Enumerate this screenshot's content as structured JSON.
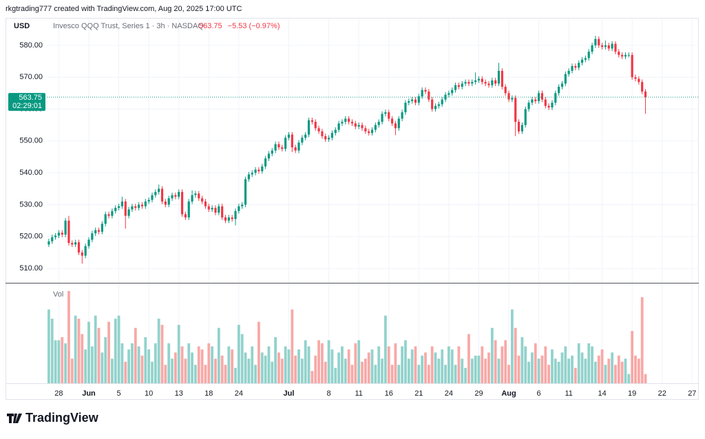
{
  "chart_data": {
    "type": "candlestick",
    "title": "rkgtrading777 created with TradingView.com, Aug 20, 2025 17:00 UTC",
    "currency": "USD",
    "symbol": "Invesco QQQ Trust, Series 1 · 3h · NASDAQ",
    "last_price": 563.75,
    "change_label": "−5.53 (−0.97%)",
    "countdown": "02:29:01",
    "volume_label": "Vol",
    "up_color": "#089981",
    "down_color": "#f23645",
    "volume_up_color": "#92d2cc",
    "volume_down_color": "#f7a9a7",
    "grid": true,
    "ylim": [
      505.7,
      588.4
    ],
    "yticks": [
      {
        "value": 510,
        "label": "510.00"
      },
      {
        "value": 520,
        "label": "520.00"
      },
      {
        "value": 530,
        "label": "530.00"
      },
      {
        "value": 540,
        "label": "540.00"
      },
      {
        "value": 550,
        "label": "550.00"
      },
      {
        "value": 560,
        "label": "560.00"
      },
      {
        "value": 570,
        "label": "570.00"
      },
      {
        "value": 580,
        "label": "580.00"
      }
    ],
    "xlim": [
      -0.6,
      195
    ],
    "xticks": [
      {
        "value": 3,
        "label": "28"
      },
      {
        "value": 12,
        "label": "Jun"
      },
      {
        "value": 21,
        "label": "5"
      },
      {
        "value": 30,
        "label": "10"
      },
      {
        "value": 39,
        "label": "13"
      },
      {
        "value": 48,
        "label": "18"
      },
      {
        "value": 57,
        "label": "24"
      },
      {
        "value": 72,
        "label": "Jul"
      },
      {
        "value": 84,
        "label": "8"
      },
      {
        "value": 93,
        "label": "11"
      },
      {
        "value": 102,
        "label": "16"
      },
      {
        "value": 111,
        "label": "21"
      },
      {
        "value": 120,
        "label": "24"
      },
      {
        "value": 129,
        "label": "29"
      },
      {
        "value": 138,
        "label": "Aug"
      },
      {
        "value": 147,
        "label": "6"
      },
      {
        "value": 156,
        "label": "11"
      },
      {
        "value": 166,
        "label": "14"
      },
      {
        "value": 175,
        "label": "19"
      },
      {
        "value": 184,
        "label": "22"
      },
      {
        "value": 193,
        "label": "27"
      }
    ],
    "vlim": [
      0,
      32
    ],
    "open": [
      517.5,
      518.5,
      519.8,
      520.3,
      521.2,
      520.6,
      525.0,
      518.0,
      517.5,
      518.2,
      515.0,
      514.0,
      517.0,
      519.0,
      521.0,
      522.0,
      521.5,
      524.0,
      527.0,
      526.5,
      528.0,
      529.0,
      529.5,
      531.0,
      526.5,
      528.5,
      529.5,
      529.0,
      530.0,
      529.5,
      531.0,
      531.5,
      533.0,
      534.0,
      535.0,
      531.0,
      530.0,
      532.0,
      533.0,
      532.5,
      534.0,
      527.0,
      526.0,
      531.0,
      533.0,
      533.5,
      532.0,
      531.0,
      529.5,
      528.5,
      529.0,
      527.5,
      529.5,
      526.0,
      525.0,
      526.0,
      525.5,
      528.0,
      529.5,
      530.0,
      538.0,
      539.5,
      540.0,
      541.0,
      540.5,
      542.0,
      544.5,
      546.0,
      547.0,
      549.0,
      548.0,
      547.5,
      551.0,
      552.0,
      548.0,
      547.0,
      549.5,
      551.0,
      552.0,
      556.5,
      556.0,
      554.0,
      553.0,
      551.5,
      550.5,
      551.0,
      552.5,
      553.5,
      555.5,
      556.0,
      557.0,
      556.0,
      555.5,
      554.5,
      555.0,
      554.0,
      553.0,
      552.5,
      553.5,
      555.0,
      556.0,
      558.5,
      559.0,
      557.0,
      555.5,
      554.0,
      557.0,
      559.0,
      562.0,
      562.5,
      563.0,
      562.0,
      564.0,
      566.0,
      565.5,
      563.0,
      560.0,
      561.0,
      561.5,
      563.0,
      564.5,
      565.0,
      566.0,
      567.5,
      567.0,
      568.0,
      568.5,
      568.0,
      568.5,
      569.0,
      569.5,
      568.5,
      568.0,
      567.5,
      569.0,
      568.0,
      572.0,
      567.0,
      565.0,
      563.0,
      563.5,
      556.0,
      553.0,
      555.0,
      560.0,
      562.0,
      563.0,
      562.5,
      565.0,
      563.0,
      561.0,
      560.5,
      562.0,
      565.0,
      567.0,
      568.0,
      571.0,
      572.0,
      573.5,
      573.0,
      574.5,
      575.5,
      576.0,
      578.0,
      580.0,
      582.0,
      580.0,
      579.5,
      580.0,
      579.0,
      580.5,
      578.0,
      577.0,
      576.5,
      577.0,
      577.0,
      570.0,
      569.5,
      568.5,
      565.5
    ],
    "high": [
      519.3,
      520.6,
      521.1,
      522.0,
      522.0,
      525.8,
      526.5,
      518.8,
      519.0,
      519.0,
      515.8,
      517.8,
      519.8,
      521.8,
      522.8,
      522.8,
      524.8,
      527.8,
      527.8,
      528.8,
      529.8,
      530.3,
      532.5,
      531.8,
      529.3,
      530.3,
      530.3,
      530.8,
      530.8,
      531.8,
      532.3,
      533.8,
      534.8,
      536.3,
      535.8,
      531.8,
      532.8,
      533.8,
      533.8,
      534.8,
      534.8,
      527.8,
      531.8,
      534.5,
      534.3,
      534.3,
      532.8,
      531.8,
      530.3,
      529.8,
      529.8,
      530.3,
      530.3,
      526.8,
      526.8,
      526.8,
      528.8,
      530.3,
      530.8,
      538.8,
      540.3,
      540.8,
      541.8,
      541.8,
      542.8,
      545.3,
      546.8,
      547.8,
      549.8,
      549.8,
      548.8,
      551.8,
      552.8,
      552.8,
      548.8,
      550.3,
      551.8,
      552.8,
      557.3,
      557.3,
      556.8,
      554.8,
      553.8,
      552.3,
      551.8,
      553.3,
      554.3,
      556.3,
      556.8,
      557.8,
      557.8,
      556.8,
      556.3,
      555.8,
      555.8,
      554.8,
      553.8,
      554.3,
      555.8,
      556.8,
      559.3,
      559.8,
      559.8,
      557.8,
      556.3,
      557.8,
      559.8,
      562.8,
      563.3,
      563.8,
      563.8,
      564.8,
      566.8,
      566.8,
      566.3,
      563.8,
      561.8,
      562.3,
      563.8,
      565.3,
      565.8,
      566.8,
      568.3,
      568.3,
      568.8,
      569.3,
      569.3,
      569.3,
      571.5,
      570.3,
      570.3,
      569.3,
      568.8,
      569.8,
      569.8,
      574.5,
      572.8,
      567.8,
      565.8,
      564.3,
      564.3,
      556.8,
      555.8,
      560.8,
      562.8,
      563.8,
      563.8,
      565.8,
      565.8,
      563.8,
      561.8,
      562.8,
      565.8,
      567.8,
      568.8,
      571.8,
      572.8,
      574.3,
      574.3,
      575.3,
      576.3,
      576.8,
      578.8,
      580.8,
      583.0,
      582.8,
      580.8,
      581.5,
      580.8,
      581.3,
      581.3,
      578.8,
      577.8,
      577.8,
      577.8,
      577.8,
      570.8,
      570.3,
      569.3,
      566.3
    ],
    "low": [
      516.7,
      517.7,
      519.0,
      519.5,
      519.8,
      519.8,
      517.2,
      516.7,
      516.7,
      514.2,
      511.5,
      513.2,
      516.2,
      518.2,
      520.2,
      520.7,
      520.7,
      523.2,
      525.7,
      525.7,
      527.2,
      528.2,
      528.7,
      522.5,
      525.7,
      527.7,
      528.2,
      528.2,
      528.7,
      528.7,
      530.2,
      530.7,
      532.2,
      533.2,
      530.2,
      529.2,
      529.2,
      531.2,
      531.7,
      531.7,
      526.2,
      525.2,
      525.2,
      530.2,
      532.2,
      531.2,
      530.2,
      528.7,
      527.7,
      527.7,
      526.7,
      526.7,
      525.2,
      524.2,
      524.2,
      524.7,
      523.5,
      527.2,
      528.7,
      529.2,
      537.2,
      538.7,
      539.2,
      539.7,
      539.7,
      541.2,
      543.7,
      545.2,
      546.2,
      547.2,
      546.7,
      546.7,
      550.2,
      546.5,
      546.2,
      546.2,
      548.7,
      550.2,
      551.2,
      555.2,
      553.2,
      552.2,
      550.7,
      549.7,
      549.7,
      550.2,
      551.7,
      552.7,
      554.7,
      555.2,
      555.2,
      554.7,
      553.7,
      553.7,
      553.2,
      552.2,
      551.7,
      551.7,
      552.7,
      554.2,
      555.2,
      557.7,
      556.2,
      554.7,
      551.8,
      553.2,
      556.2,
      558.2,
      561.2,
      561.7,
      561.2,
      561.2,
      563.2,
      564.7,
      562.2,
      559.2,
      559.2,
      560.2,
      560.7,
      562.2,
      563.7,
      564.2,
      565.2,
      566.2,
      566.2,
      567.2,
      567.2,
      567.2,
      567.7,
      568.2,
      567.7,
      567.2,
      566.7,
      566.7,
      567.2,
      567.2,
      566.2,
      564.2,
      562.2,
      562.2,
      551.5,
      552.2,
      552.2,
      554.2,
      559.2,
      561.2,
      561.7,
      561.7,
      562.2,
      560.2,
      559.7,
      559.7,
      561.2,
      564.2,
      566.2,
      567.2,
      570.2,
      571.2,
      572.2,
      572.2,
      573.7,
      574.7,
      575.2,
      577.2,
      579.2,
      579.2,
      578.7,
      578.7,
      578.2,
      578.2,
      577.2,
      576.2,
      575.7,
      575.7,
      576.2,
      569.2,
      568.7,
      567.7,
      564.7,
      558.5
    ],
    "close": [
      518.5,
      519.8,
      520.3,
      521.2,
      520.6,
      525.0,
      518.0,
      517.5,
      518.2,
      515.0,
      514.0,
      517.0,
      519.0,
      521.0,
      522.0,
      521.5,
      524.0,
      527.0,
      526.5,
      528.0,
      529.0,
      529.5,
      531.0,
      526.5,
      528.5,
      529.5,
      529.0,
      530.0,
      529.5,
      531.0,
      531.5,
      533.0,
      534.0,
      535.0,
      531.0,
      530.0,
      532.0,
      533.0,
      532.5,
      534.0,
      527.0,
      526.0,
      531.0,
      533.0,
      533.5,
      532.0,
      531.0,
      529.5,
      528.5,
      529.0,
      527.5,
      529.5,
      526.0,
      525.0,
      526.0,
      525.5,
      528.0,
      529.5,
      530.0,
      538.0,
      539.5,
      540.0,
      541.0,
      540.5,
      542.0,
      544.5,
      546.0,
      547.0,
      549.0,
      548.0,
      547.5,
      551.0,
      552.0,
      548.0,
      547.0,
      549.5,
      551.0,
      552.0,
      556.5,
      556.0,
      554.0,
      553.0,
      551.5,
      550.5,
      551.0,
      552.5,
      553.5,
      555.5,
      556.0,
      557.0,
      556.0,
      555.5,
      554.5,
      555.0,
      554.0,
      553.0,
      552.5,
      553.5,
      555.0,
      556.0,
      558.5,
      559.0,
      557.0,
      555.5,
      554.0,
      557.0,
      559.0,
      562.0,
      562.5,
      563.0,
      562.0,
      564.0,
      566.0,
      565.5,
      563.0,
      560.0,
      561.0,
      561.5,
      563.0,
      564.5,
      565.0,
      566.0,
      567.5,
      567.0,
      568.0,
      568.5,
      568.0,
      568.5,
      569.0,
      569.5,
      568.5,
      568.0,
      567.5,
      569.0,
      568.0,
      572.0,
      567.0,
      565.0,
      563.0,
      563.5,
      556.0,
      553.0,
      555.0,
      560.0,
      562.0,
      563.0,
      562.5,
      565.0,
      563.0,
      561.0,
      560.5,
      562.0,
      565.0,
      567.0,
      568.0,
      571.0,
      572.0,
      573.5,
      573.0,
      574.5,
      575.5,
      576.0,
      578.0,
      580.0,
      582.0,
      580.0,
      579.5,
      580.0,
      579.0,
      580.5,
      578.0,
      577.0,
      576.5,
      577.0,
      577.0,
      570.0,
      569.5,
      568.5,
      565.5,
      563.75
    ],
    "volume": [
      24,
      21,
      14,
      14,
      15,
      13,
      30,
      8,
      22,
      21,
      16,
      11,
      20,
      12,
      22,
      18,
      10,
      15,
      20,
      8,
      21,
      22,
      13,
      7,
      11,
      13,
      18,
      12,
      9,
      15,
      11,
      7,
      13,
      21,
      19,
      6,
      13,
      8,
      10,
      19,
      12,
      8,
      13,
      10,
      6,
      12,
      11,
      6,
      13,
      12,
      8,
      18,
      9,
      6,
      12,
      11,
      5,
      19,
      16,
      10,
      8,
      12,
      6,
      20,
      10,
      9,
      12,
      7,
      15,
      10,
      8,
      12,
      11,
      24,
      9,
      11,
      8,
      14,
      12,
      4,
      9,
      14,
      13,
      7,
      14,
      11,
      5,
      10,
      12,
      8,
      11,
      6,
      13,
      14,
      7,
      8,
      10,
      11,
      6,
      12,
      8,
      22,
      12,
      6,
      13,
      6,
      12,
      14,
      8,
      11,
      12,
      6,
      9,
      10,
      6,
      12,
      10,
      8,
      11,
      6,
      12,
      11,
      6,
      12,
      8,
      5,
      16,
      8,
      9,
      9,
      12,
      8,
      10,
      18,
      14,
      8,
      12,
      14,
      6,
      24,
      18,
      9,
      15,
      12,
      7,
      10,
      13,
      8,
      9,
      12,
      6,
      11,
      8,
      7,
      10,
      12,
      8,
      9,
      5,
      13,
      10,
      8,
      13,
      12,
      7,
      9,
      11,
      6,
      8,
      10,
      6,
      9,
      7,
      8,
      3,
      17,
      9,
      8,
      28,
      3
    ]
  },
  "logo": "TradingView"
}
